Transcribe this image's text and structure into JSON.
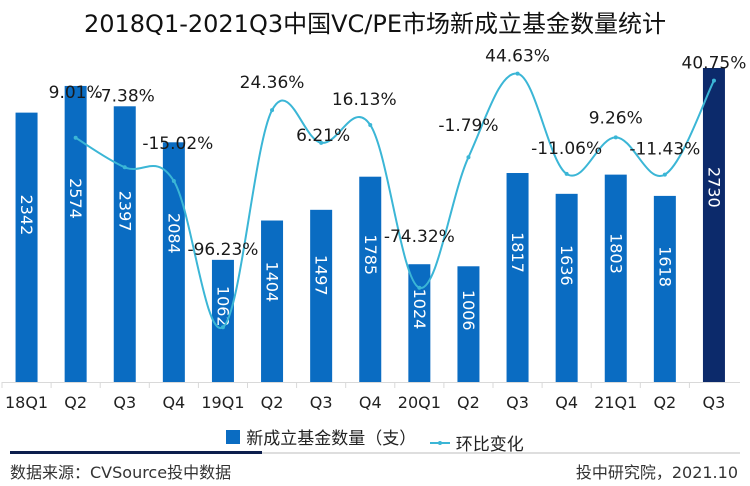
{
  "title": "2018Q1-2021Q3中国VC/PE市场新成立基金数量统计",
  "chart_data": {
    "type": "bar+line",
    "title": "2018Q1-2021Q3中国VC/PE市场新成立基金数量统计",
    "categories": [
      "18Q1",
      "Q2",
      "Q3",
      "Q4",
      "19Q1",
      "Q2",
      "Q3",
      "Q4",
      "20Q1",
      "Q2",
      "Q3",
      "Q4",
      "21Q1",
      "Q2",
      "Q3"
    ],
    "series": [
      {
        "name": "新成立基金数量（支）",
        "type": "bar",
        "color": "#0a6cc2",
        "highlight_color": "#0c2a6b",
        "highlight_index": 14,
        "values": [
          2342,
          2574,
          2397,
          2084,
          1062,
          1404,
          1497,
          1785,
          1024,
          1006,
          1817,
          1636,
          1803,
          1618,
          2730
        ],
        "labels": [
          "2342",
          "2574",
          "2397",
          "2084",
          "1062",
          "1404",
          "1497",
          "1785",
          "1024",
          "1006",
          "1817",
          "1636",
          "1803",
          "1618",
          "2730"
        ]
      },
      {
        "name": "环比变化",
        "type": "line",
        "color": "#3bb6d6",
        "values": [
          null,
          9.01,
          -7.38,
          -15.02,
          -96.23,
          24.36,
          6.21,
          16.13,
          -74.32,
          -1.79,
          44.63,
          -11.06,
          9.26,
          -11.43,
          40.75
        ],
        "labels": [
          "",
          "9.01%",
          "-7.38%",
          "-15.02%",
          "-96.23%",
          "24.36%",
          "6.21%",
          "16.13%",
          "-74.32%",
          "-1.79%",
          "44.63%",
          "-11.06%",
          "9.26%",
          "-11.43%",
          "40.75%"
        ]
      }
    ],
    "xlabel": "",
    "ylabel": "",
    "ylim": [
      0,
      2730
    ],
    "grid": false,
    "legend": "bottom"
  },
  "legend": {
    "bar_label": "新成立基金数量（支）",
    "line_label": "环比变化"
  },
  "footer": {
    "source": "数据来源：CVSource投中数据",
    "credit": "投中研究院，2021.10"
  }
}
